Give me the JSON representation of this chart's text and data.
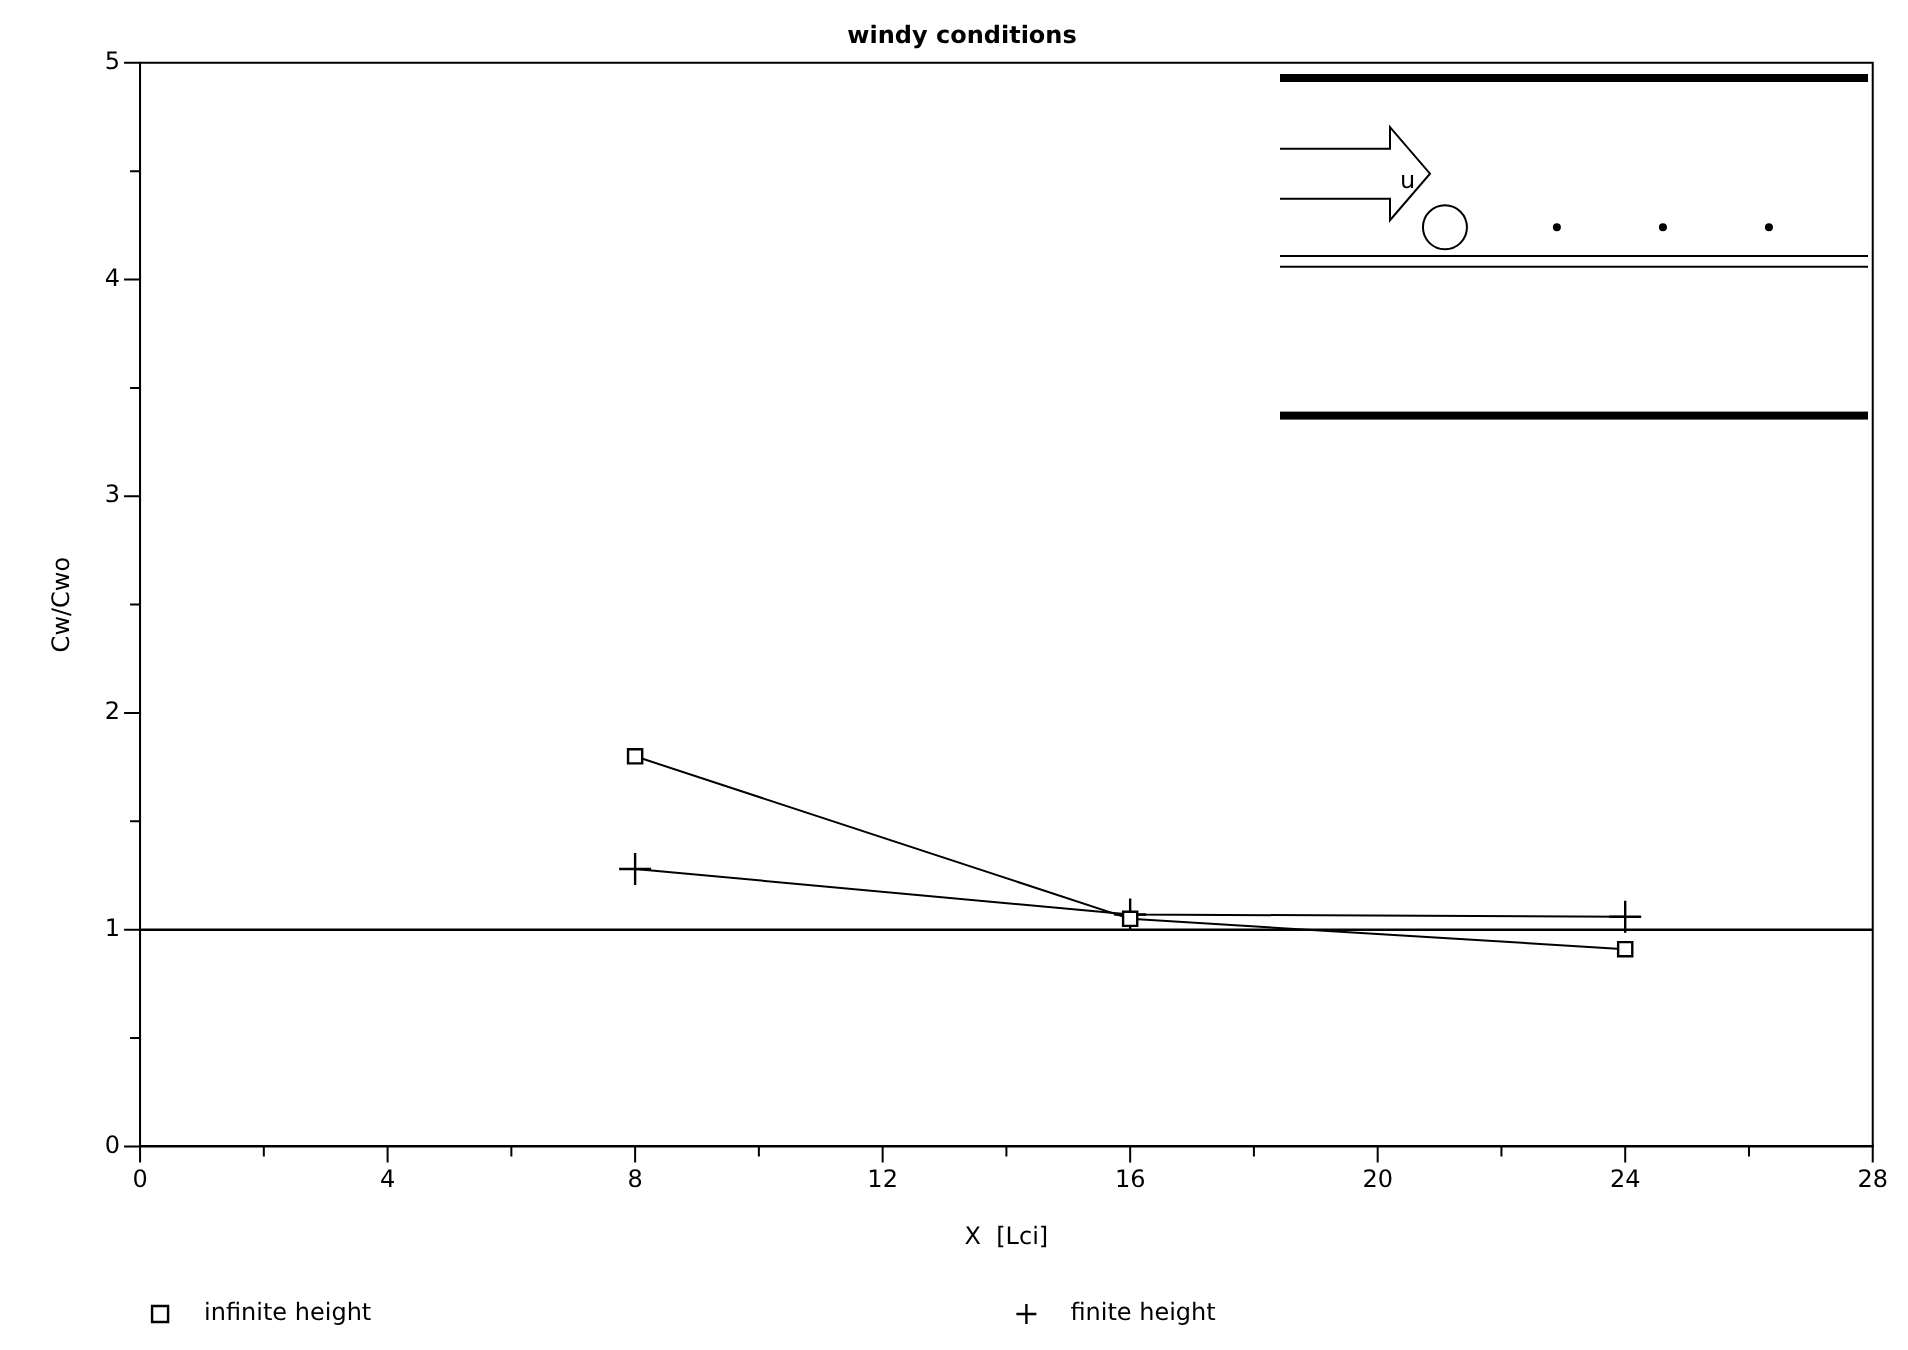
{
  "chart_data": {
    "type": "line",
    "title": "windy conditions",
    "xlabel": "X  [Lci]",
    "ylabel": "Cw/Cwo",
    "x": [
      8,
      16,
      24
    ],
    "series": [
      {
        "name": "infinite height",
        "color": "#000000",
        "marker": "square",
        "values": [
          1.8,
          1.05,
          0.91
        ]
      },
      {
        "name": "finite height",
        "color": "#000000",
        "marker": "cross",
        "values": [
          1.28,
          1.07,
          1.06
        ]
      }
    ],
    "xlim": [
      0,
      28
    ],
    "xticks": [
      0,
      {
        "value": 2,
        "label": null
      },
      4,
      {
        "value": 6,
        "label": null
      },
      8,
      {
        "value": 10,
        "label": null
      },
      12,
      {
        "value": 14,
        "label": null
      },
      16,
      {
        "value": 18,
        "label": null
      },
      20,
      {
        "value": 22,
        "label": null
      },
      24,
      {
        "value": 26,
        "label": null
      },
      28
    ],
    "ylim": [
      0,
      5
    ],
    "yticks": [
      0,
      {
        "value": 0.5,
        "label": null
      },
      1,
      {
        "value": 1.5,
        "label": null
      },
      2,
      {
        "value": 2.5,
        "label": null
      },
      3,
      {
        "value": 3.5,
        "label": null
      },
      4,
      {
        "value": 4.5,
        "label": null
      },
      5
    ],
    "ref_lines": [
      {
        "axis": "y",
        "value": 1,
        "color": "#000000"
      }
    ],
    "annotations": [
      "u"
    ],
    "grid": false,
    "legend": "bottom"
  }
}
